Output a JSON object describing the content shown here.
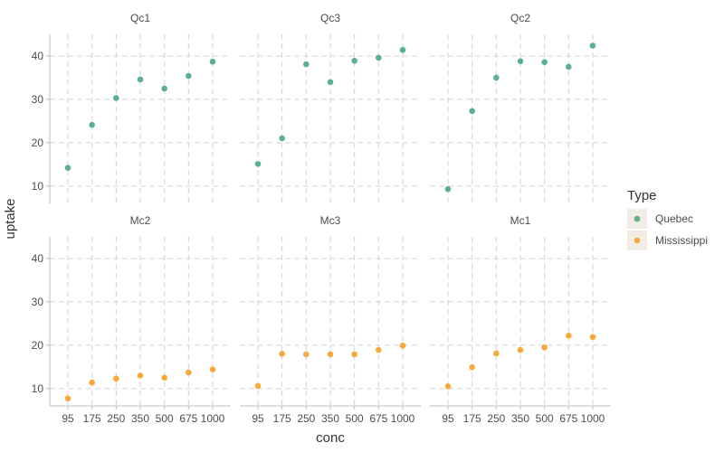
{
  "chart_data": {
    "type": "scatter",
    "xlabel": "conc",
    "ylabel": "uptake",
    "x_ticks": [
      "95",
      "175",
      "250",
      "350",
      "500",
      "675",
      "1000"
    ],
    "y_ticks": [
      10,
      20,
      30,
      40
    ],
    "ylim": [
      6,
      45
    ],
    "grid": true,
    "legend": {
      "title": "Type",
      "position": "right",
      "entries": [
        {
          "label": "Quebec",
          "color": "#5BB08F"
        },
        {
          "label": "Mississippi",
          "color": "#F7A93B"
        }
      ]
    },
    "panels": [
      {
        "label": "Qc1",
        "type": "Quebec",
        "uptake": [
          14.2,
          24.1,
          30.3,
          34.6,
          32.5,
          35.4,
          38.7
        ]
      },
      {
        "label": "Qc3",
        "type": "Quebec",
        "uptake": [
          15.1,
          21.0,
          38.1,
          34.0,
          38.9,
          39.6,
          41.4
        ]
      },
      {
        "label": "Qc2",
        "type": "Quebec",
        "uptake": [
          9.3,
          27.3,
          35.0,
          38.8,
          38.6,
          37.5,
          42.4
        ]
      },
      {
        "label": "Mc2",
        "type": "Mississippi",
        "uptake": [
          7.7,
          11.4,
          12.3,
          13.0,
          12.5,
          13.7,
          14.4
        ]
      },
      {
        "label": "Mc3",
        "type": "Mississippi",
        "uptake": [
          10.6,
          18.0,
          17.9,
          17.9,
          17.9,
          18.9,
          19.9
        ]
      },
      {
        "label": "Mc1",
        "type": "Mississippi",
        "uptake": [
          10.5,
          14.9,
          18.1,
          18.9,
          19.5,
          22.2,
          21.9
        ]
      }
    ]
  }
}
